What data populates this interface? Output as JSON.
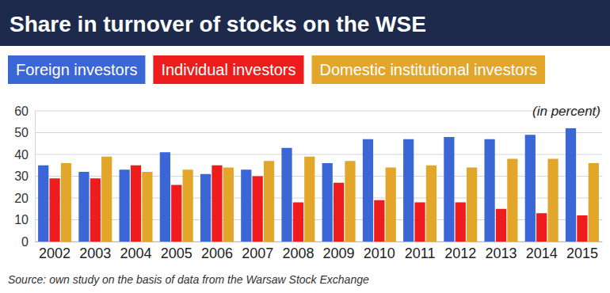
{
  "chart_data": {
    "type": "bar",
    "title": "Share in turnover of stocks on the WSE",
    "annotation": "(in percent)",
    "source": "Source: own study on the basis of data from the Warsaw Stock Exchange",
    "categories": [
      "2002",
      "2003",
      "2004",
      "2005",
      "2006",
      "2007",
      "2008",
      "2009",
      "2010",
      "2011",
      "2012",
      "2013",
      "2014",
      "2015"
    ],
    "series": [
      {
        "name": "Foreign investors",
        "color": "#3a66d6",
        "values": [
          35,
          32,
          33,
          41,
          31,
          33,
          43,
          36,
          47,
          47,
          48,
          47,
          49,
          52
        ]
      },
      {
        "name": "Individual investors",
        "color": "#ee1c1c",
        "values": [
          29,
          29,
          35,
          26,
          35,
          30,
          18,
          27,
          19,
          18,
          18,
          15,
          13,
          12
        ]
      },
      {
        "name": "Domestic institutional investors",
        "color": "#e2a62a",
        "values": [
          36,
          39,
          32,
          33,
          34,
          37,
          39,
          37,
          34,
          35,
          34,
          38,
          38,
          36
        ]
      }
    ],
    "ylim": [
      0,
      60
    ],
    "yticks": [
      0,
      10,
      20,
      30,
      40,
      50,
      60
    ],
    "grid": true,
    "legend": "top"
  }
}
